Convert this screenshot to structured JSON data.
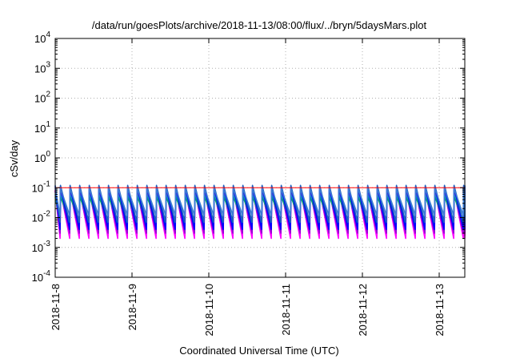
{
  "chart_data": {
    "type": "line",
    "title": "/data/run/goesPlots/archive/2018-11-13/08:00/flux/../bryn/5daysMars.plot",
    "xlabel": "Coordinated Universal Time (UTC)",
    "ylabel": "cSv/day",
    "y_scale": "log",
    "grid": true,
    "legend": "none",
    "xlim": [
      "2018-11-08T00:00",
      "2018-11-13T08:00"
    ],
    "ylim": [
      0.0001,
      10000
    ],
    "x_ticks": [
      "2018-11-8",
      "2018-11-9",
      "2018-11-10",
      "2018-11-11",
      "2018-11-12",
      "2018-11-13"
    ],
    "y_ticks": [
      {
        "base": "10",
        "exp": "-4",
        "value": 0.0001
      },
      {
        "base": "10",
        "exp": "-3",
        "value": 0.001
      },
      {
        "base": "10",
        "exp": "-2",
        "value": 0.01
      },
      {
        "base": "10",
        "exp": "-1",
        "value": 0.1
      },
      {
        "base": "10",
        "exp": "0",
        "value": 1
      },
      {
        "base": "10",
        "exp": "1",
        "value": 10
      },
      {
        "base": "10",
        "exp": "2",
        "value": 100
      },
      {
        "base": "10",
        "exp": "3",
        "value": 1000
      },
      {
        "base": "10",
        "exp": "4",
        "value": 10000
      }
    ],
    "reference_line": {
      "value": 0.1,
      "color": "#ff0000"
    },
    "cycle_hours": 3,
    "series": [
      {
        "color": "#ff00ff",
        "peak": 0.085,
        "trough": 0.002
      },
      {
        "color": "#ff00ff",
        "peak": 0.08,
        "trough": 0.0025
      },
      {
        "color": "#9400d3",
        "peak": 0.075,
        "trough": 0.003
      },
      {
        "color": "#00c0c0",
        "peak": 0.06,
        "trough": 0.006
      },
      {
        "color": "#009e73",
        "peak": 0.05,
        "trough": 0.008
      },
      {
        "color": "#0000ff",
        "peak": 0.11,
        "trough": 0.004
      },
      {
        "color": "#1f5fbf",
        "peak": 0.12,
        "trough": 0.007
      },
      {
        "color": "#3a7bd5",
        "peak": 0.095,
        "trough": 0.012
      }
    ]
  }
}
